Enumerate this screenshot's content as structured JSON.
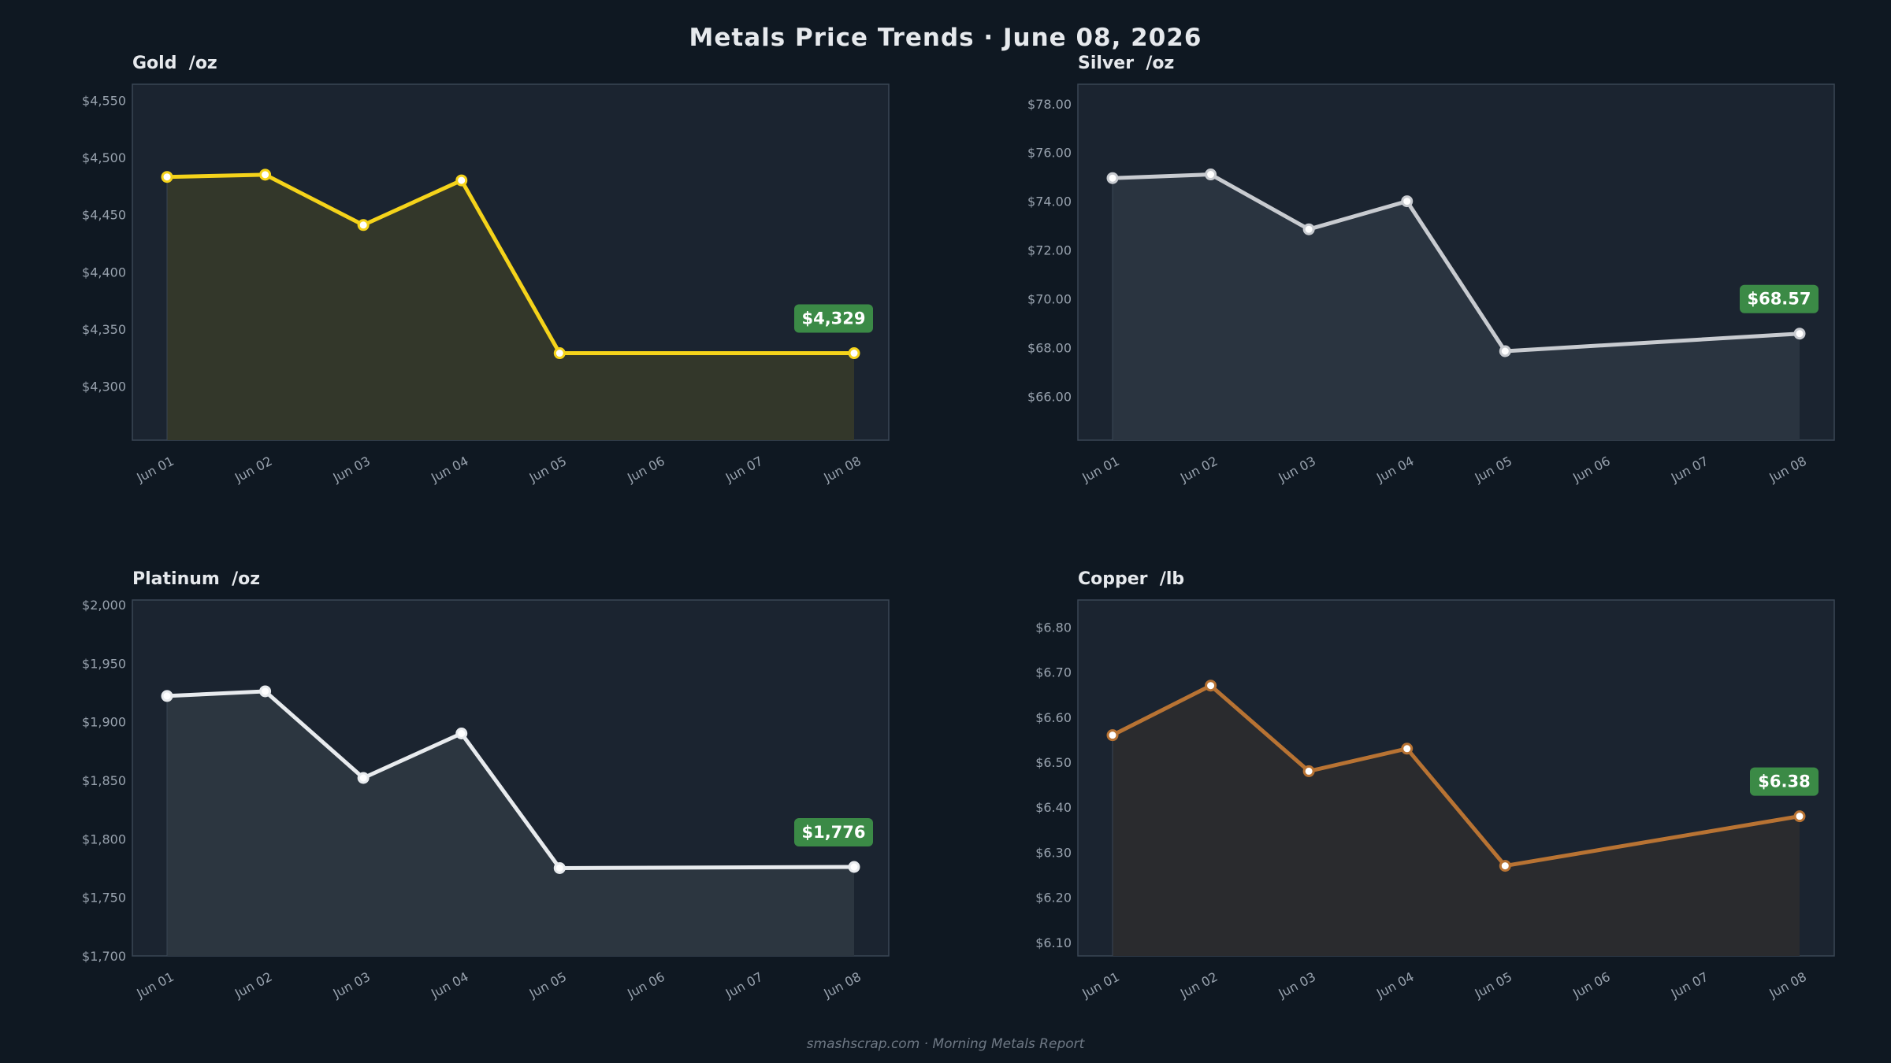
{
  "header": {
    "title": "Metals Price Trends  ·  June 08, 2026"
  },
  "footer": {
    "text": "smashscrap.com  ·  Morning Metals Report"
  },
  "colors": {
    "background": "#0f1822",
    "plot_background": "#1b2430",
    "badge": "#3b8a46",
    "gold": "#f5d31a",
    "silver": "#c8cbd0",
    "platinum": "#e8ebee",
    "copper": "#b87333"
  },
  "chart_data": [
    {
      "type": "area",
      "title": "Gold  /oz",
      "x": [
        "Jun 01",
        "Jun 02",
        "Jun 03",
        "Jun 04",
        "Jun 05",
        "Jun 06",
        "Jun 07",
        "Jun 08"
      ],
      "series": [
        {
          "points": [
            {
              "x": "Jun 01",
              "y": 4483
            },
            {
              "x": "Jun 02",
              "y": 4485
            },
            {
              "x": "Jun 03",
              "y": 4441
            },
            {
              "x": "Jun 04",
              "y": 4480
            },
            {
              "x": "Jun 05",
              "y": 4329
            },
            {
              "x": "Jun 08",
              "y": 4329
            }
          ],
          "color": "#f5d31a",
          "fill": "#33372a"
        }
      ],
      "ylim": [
        4253,
        4564
      ],
      "yticks": [
        4300,
        4350,
        4400,
        4450,
        4500,
        4550
      ],
      "ytick_labels": [
        "$4,300",
        "$4,350",
        "$4,400",
        "$4,450",
        "$4,500",
        "$4,550"
      ],
      "badge": "$4,329",
      "grid": false
    },
    {
      "type": "area",
      "title": "Silver  /oz",
      "x": [
        "Jun 01",
        "Jun 02",
        "Jun 03",
        "Jun 04",
        "Jun 05",
        "Jun 06",
        "Jun 07",
        "Jun 08"
      ],
      "series": [
        {
          "points": [
            {
              "x": "Jun 01",
              "y": 74.95
            },
            {
              "x": "Jun 02",
              "y": 75.1
            },
            {
              "x": "Jun 03",
              "y": 72.85
            },
            {
              "x": "Jun 04",
              "y": 74.0
            },
            {
              "x": "Jun 05",
              "y": 67.85
            },
            {
              "x": "Jun 08",
              "y": 68.57
            }
          ],
          "color": "#c8cbd0",
          "fill": "#2a3440"
        }
      ],
      "ylim": [
        64.2,
        78.8
      ],
      "yticks": [
        66,
        68,
        70,
        72,
        74,
        76,
        78
      ],
      "ytick_labels": [
        "$66.00",
        "$68.00",
        "$70.00",
        "$72.00",
        "$74.00",
        "$76.00",
        "$78.00"
      ],
      "badge": "$68.57",
      "grid": false
    },
    {
      "type": "area",
      "title": "Platinum  /oz",
      "x": [
        "Jun 01",
        "Jun 02",
        "Jun 03",
        "Jun 04",
        "Jun 05",
        "Jun 06",
        "Jun 07",
        "Jun 08"
      ],
      "series": [
        {
          "points": [
            {
              "x": "Jun 01",
              "y": 1922
            },
            {
              "x": "Jun 02",
              "y": 1926
            },
            {
              "x": "Jun 03",
              "y": 1852
            },
            {
              "x": "Jun 04",
              "y": 1890
            },
            {
              "x": "Jun 05",
              "y": 1775
            },
            {
              "x": "Jun 08",
              "y": 1776
            }
          ],
          "color": "#e8ebee",
          "fill": "#2c3640"
        }
      ],
      "ylim": [
        1700,
        2004
      ],
      "yticks": [
        1700,
        1750,
        1800,
        1850,
        1900,
        1950,
        2000
      ],
      "ytick_labels": [
        "$1,700",
        "$1,750",
        "$1,800",
        "$1,850",
        "$1,900",
        "$1,950",
        "$2,000"
      ],
      "badge": "$1,776",
      "grid": false
    },
    {
      "type": "area",
      "title": "Copper  /lb",
      "x": [
        "Jun 01",
        "Jun 02",
        "Jun 03",
        "Jun 04",
        "Jun 05",
        "Jun 06",
        "Jun 07",
        "Jun 08"
      ],
      "series": [
        {
          "points": [
            {
              "x": "Jun 01",
              "y": 6.56
            },
            {
              "x": "Jun 02",
              "y": 6.67
            },
            {
              "x": "Jun 03",
              "y": 6.48
            },
            {
              "x": "Jun 04",
              "y": 6.53
            },
            {
              "x": "Jun 05",
              "y": 6.27
            },
            {
              "x": "Jun 08",
              "y": 6.38
            }
          ],
          "color": "#b87333",
          "fill": "#2a2b2e"
        }
      ],
      "ylim": [
        6.07,
        6.86
      ],
      "yticks": [
        6.1,
        6.2,
        6.3,
        6.4,
        6.5,
        6.6,
        6.7,
        6.8
      ],
      "ytick_labels": [
        "$6.10",
        "$6.20",
        "$6.30",
        "$6.40",
        "$6.50",
        "$6.60",
        "$6.70",
        "$6.80"
      ],
      "badge": "$6.38",
      "grid": false
    }
  ]
}
